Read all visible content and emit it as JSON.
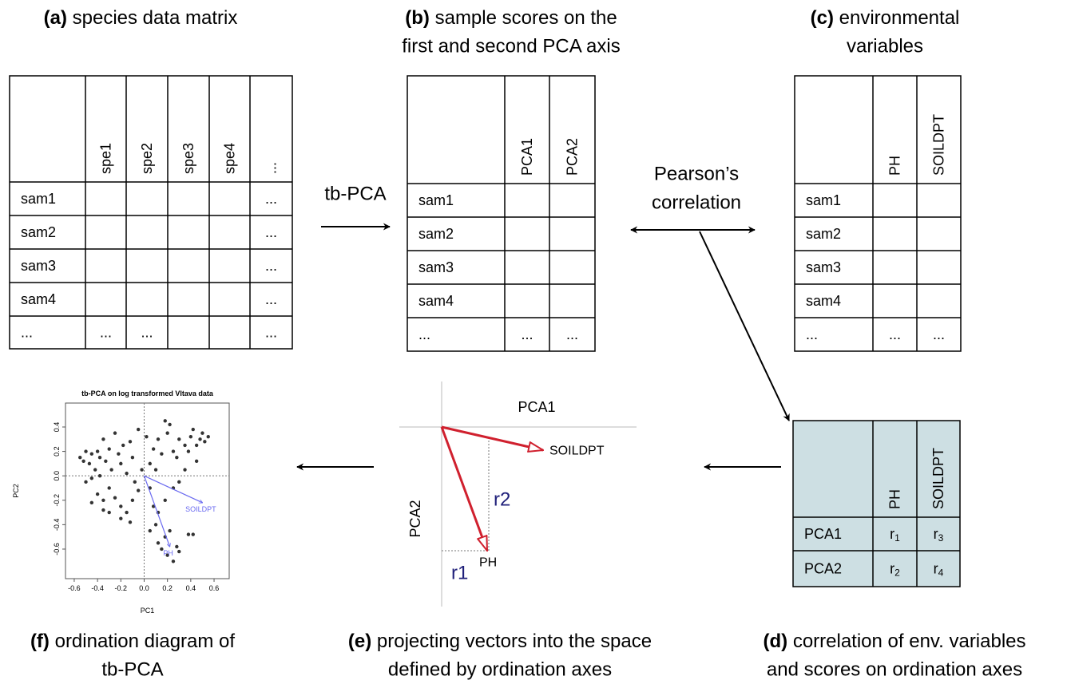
{
  "panels": {
    "a": {
      "label": "(a)",
      "title": [
        "species data matrix"
      ],
      "table": {
        "columns": [
          "spe1",
          "spe2",
          "spe3",
          "spe4",
          "..."
        ],
        "rows": [
          {
            "label": "sam1",
            "cells": [
              null,
              null,
              null,
              null,
              "..."
            ]
          },
          {
            "label": "sam2",
            "cells": [
              null,
              null,
              null,
              null,
              "..."
            ]
          },
          {
            "label": "sam3",
            "cells": [
              null,
              null,
              null,
              null,
              "..."
            ]
          },
          {
            "label": "sam4",
            "cells": [
              null,
              null,
              null,
              null,
              "..."
            ]
          },
          {
            "label": "...",
            "cells": [
              "...",
              "...",
              null,
              null,
              "..."
            ]
          }
        ]
      }
    },
    "b": {
      "label": "(b)",
      "title": [
        "sample scores on the",
        "first and second PCA axis"
      ],
      "table": {
        "columns": [
          "PCA1",
          "PCA2"
        ],
        "rows": [
          {
            "label": "sam1",
            "cells": [
              null,
              null
            ]
          },
          {
            "label": "sam2",
            "cells": [
              null,
              null
            ]
          },
          {
            "label": "sam3",
            "cells": [
              null,
              null
            ]
          },
          {
            "label": "sam4",
            "cells": [
              null,
              null
            ]
          },
          {
            "label": "...",
            "cells": [
              "...",
              "..."
            ]
          }
        ]
      }
    },
    "c": {
      "label": "(c)",
      "title": [
        "environmental",
        "variables"
      ],
      "table": {
        "columns": [
          "PH",
          "SOILDPT"
        ],
        "rows": [
          {
            "label": "sam1",
            "cells": [
              null,
              null
            ]
          },
          {
            "label": "sam2",
            "cells": [
              null,
              null
            ]
          },
          {
            "label": "sam3",
            "cells": [
              null,
              null
            ]
          },
          {
            "label": "sam4",
            "cells": [
              null,
              null
            ]
          },
          {
            "label": "...",
            "cells": [
              "...",
              "..."
            ]
          }
        ]
      }
    },
    "d": {
      "label": "(d)",
      "title": [
        "correlation of env. variables",
        "and scores on ordination axes"
      ],
      "table": {
        "columns": [
          "PH",
          "SOILDPT"
        ],
        "rows": [
          {
            "label": "PCA1",
            "cells": [
              {
                "text": "r",
                "sub": "1"
              },
              {
                "text": "r",
                "sub": "3"
              }
            ]
          },
          {
            "label": "PCA2",
            "cells": [
              {
                "text": "r",
                "sub": "2"
              },
              {
                "text": "r",
                "sub": "4"
              }
            ]
          }
        ]
      }
    },
    "e": {
      "label": "(e)",
      "title": [
        "projecting vectors into the space",
        "defined by ordination axes"
      ],
      "x_axis": "PCA1",
      "y_axis": "PCA2",
      "vectors": [
        "SOILDPT",
        "PH"
      ],
      "projections": [
        "r2",
        "r1"
      ]
    },
    "f": {
      "label": "(f)",
      "title": [
        "ordination diagram of",
        "tb-PCA"
      ],
      "plot": {
        "type": "scatter",
        "title": "tb-PCA on log transformed Vltava data",
        "x_label": "PC1",
        "y_label": "PC2",
        "x": [
          -0.55,
          -0.52,
          -0.5,
          -0.47,
          -0.45,
          -0.42,
          -0.4,
          -0.38,
          -0.35,
          -0.33,
          -0.3,
          -0.28,
          -0.25,
          -0.22,
          -0.2,
          -0.18,
          -0.15,
          -0.12,
          -0.1,
          -0.05,
          -0.08,
          -0.5,
          -0.45,
          -0.4,
          -0.35,
          -0.3,
          -0.25,
          -0.2,
          -0.15,
          -0.1,
          -0.05,
          -0.3,
          -0.2,
          -0.12,
          -0.38,
          -0.02,
          -0.35,
          -0.45,
          0.02,
          0.05,
          0.08,
          0.1,
          0.12,
          0.15,
          0.18,
          0.2,
          0.22,
          0.25,
          0.28,
          0.3,
          0.35,
          0.38,
          0.4,
          0.42,
          0.45,
          0.48,
          0.5,
          0.52,
          0.55,
          0.35,
          0.45,
          0.05,
          0.08,
          0.1,
          0.12,
          0.15,
          0.18,
          0.2,
          0.22,
          0.25,
          0.28,
          0.3,
          0.12,
          0.18,
          0.38,
          0.42,
          0.25,
          0.3,
          0.05
        ],
        "y": [
          0.15,
          0.12,
          0.2,
          0.1,
          0.18,
          0.05,
          0.2,
          0.15,
          0.3,
          0.12,
          0.22,
          0.05,
          0.35,
          0.18,
          0.1,
          0.25,
          0.02,
          0.28,
          0.15,
          0.38,
          -0.05,
          -0.05,
          -0.02,
          -0.15,
          -0.2,
          -0.1,
          -0.18,
          -0.25,
          -0.3,
          -0.2,
          -0.12,
          -0.3,
          -0.35,
          -0.38,
          0.0,
          0.05,
          -0.28,
          -0.22,
          0.32,
          0.1,
          0.22,
          0.05,
          0.3,
          0.18,
          0.45,
          0.35,
          0.42,
          0.2,
          0.15,
          0.3,
          0.25,
          0.2,
          0.32,
          0.38,
          0.25,
          0.3,
          0.35,
          0.28,
          0.32,
          0.05,
          0.12,
          -0.1,
          -0.25,
          -0.4,
          -0.55,
          -0.6,
          -0.5,
          -0.65,
          -0.45,
          -0.7,
          -0.58,
          -0.62,
          -0.3,
          -0.2,
          -0.48,
          -0.48,
          -0.1,
          -0.05,
          -0.45
        ],
        "vectors": [
          {
            "label": "SOILDPT",
            "x": 0.5,
            "y": -0.22
          },
          {
            "label": "PH",
            "x": 0.22,
            "y": -0.58
          }
        ],
        "xlim": [
          -0.675,
          0.73
        ],
        "ylim": [
          -0.842,
          0.596
        ],
        "xticks": [
          -0.6,
          -0.4,
          -0.2,
          {
            "value": 0,
            "label": "0.0"
          },
          0.2,
          0.4,
          0.6
        ],
        "yticks": [
          -0.6,
          -0.4,
          -0.2,
          {
            "value": 0,
            "label": "0.0"
          },
          0.2,
          0.4
        ],
        "point_color": "#333333",
        "vector_color": "#6a6af0"
      }
    }
  },
  "arrows": {
    "a_to_b": "tb-PCA",
    "b_to_c": [
      "Pearson’s",
      "correlation"
    ]
  }
}
